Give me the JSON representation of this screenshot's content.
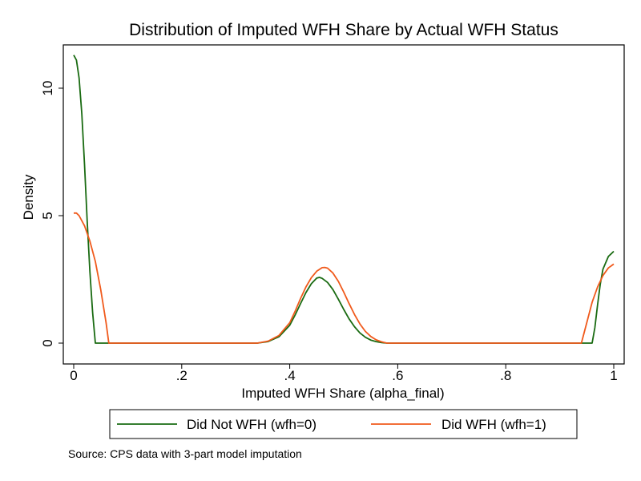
{
  "chart_data": {
    "type": "line",
    "title": "Distribution of Imputed WFH Share by Actual WFH Status",
    "xlabel": "Imputed WFH Share (alpha_final)",
    "ylabel": "Density",
    "xlim": [
      0,
      1
    ],
    "ylim": [
      0,
      12
    ],
    "x_ticks": [
      0,
      0.2,
      0.4,
      0.6,
      0.8,
      1
    ],
    "x_tick_labels": [
      "0",
      ".2",
      ".4",
      ".6",
      ".8",
      "1"
    ],
    "y_ticks": [
      0,
      5,
      10
    ],
    "y_tick_labels": [
      "0",
      "5",
      "10"
    ],
    "grid": false,
    "legend_position": "bottom",
    "note": "Source: CPS data with 3-part model imputation",
    "series": [
      {
        "name": "Did Not WFH (wfh=0)",
        "color": "#1a6b12",
        "x": [
          0,
          0.005,
          0.01,
          0.015,
          0.02,
          0.025,
          0.03,
          0.035,
          0.04,
          0.05,
          0.34,
          0.36,
          0.38,
          0.4,
          0.41,
          0.42,
          0.43,
          0.44,
          0.45,
          0.455,
          0.46,
          0.47,
          0.48,
          0.49,
          0.5,
          0.51,
          0.52,
          0.53,
          0.54,
          0.55,
          0.56,
          0.57,
          0.58,
          0.6,
          0.9,
          0.96,
          0.965,
          0.97,
          0.975,
          0.98,
          0.99,
          1
        ],
        "y": [
          11.3,
          11.1,
          10.4,
          9.0,
          7.0,
          4.8,
          2.8,
          1.2,
          0.0,
          0.0,
          0.0,
          0.06,
          0.25,
          0.7,
          1.1,
          1.55,
          1.98,
          2.33,
          2.55,
          2.58,
          2.54,
          2.38,
          2.1,
          1.72,
          1.32,
          0.95,
          0.64,
          0.4,
          0.23,
          0.12,
          0.06,
          0.02,
          0.0,
          0.0,
          0.0,
          0.0,
          0.6,
          1.5,
          2.3,
          2.9,
          3.4,
          3.6
        ]
      },
      {
        "name": "Did WFH (wfh=1)",
        "color": "#f05a1c",
        "x": [
          0,
          0.005,
          0.01,
          0.02,
          0.03,
          0.04,
          0.05,
          0.06,
          0.065,
          0.1,
          0.34,
          0.36,
          0.38,
          0.4,
          0.41,
          0.42,
          0.43,
          0.44,
          0.45,
          0.46,
          0.465,
          0.47,
          0.48,
          0.49,
          0.5,
          0.51,
          0.52,
          0.53,
          0.54,
          0.55,
          0.56,
          0.57,
          0.58,
          0.6,
          0.9,
          0.94,
          0.95,
          0.96,
          0.97,
          0.98,
          0.99,
          1
        ],
        "y": [
          5.1,
          5.1,
          5.0,
          4.6,
          4.0,
          3.2,
          2.1,
          0.8,
          0.0,
          0.0,
          0.0,
          0.08,
          0.3,
          0.8,
          1.25,
          1.75,
          2.2,
          2.57,
          2.82,
          2.96,
          2.97,
          2.94,
          2.75,
          2.42,
          2.0,
          1.55,
          1.12,
          0.75,
          0.46,
          0.26,
          0.13,
          0.05,
          0.0,
          0.0,
          0.0,
          0.0,
          0.8,
          1.6,
          2.2,
          2.65,
          2.95,
          3.1
        ]
      }
    ]
  }
}
